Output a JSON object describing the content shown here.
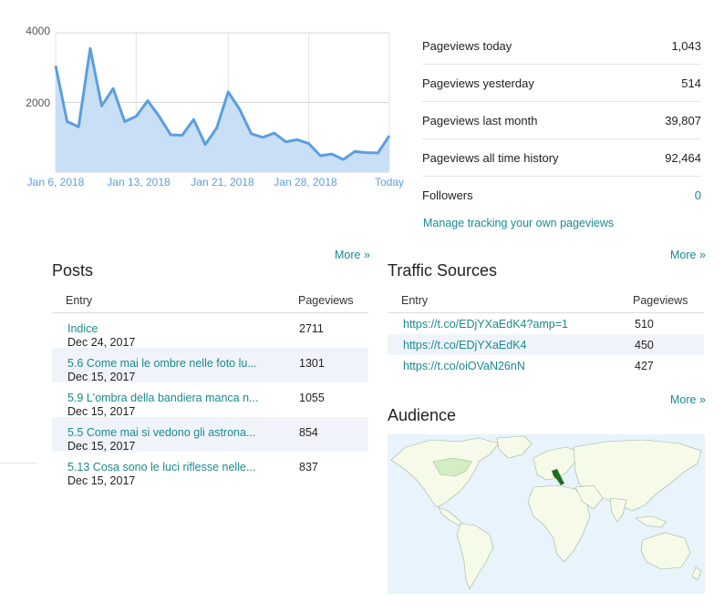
{
  "chart_data": {
    "type": "area",
    "x_labels": [
      "Jan 6, 2018",
      "Jan 13, 2018",
      "Jan 21, 2018",
      "Jan 28, 2018",
      "Today"
    ],
    "yticks": [
      "4000",
      "2000"
    ],
    "ylim": [
      0,
      4000
    ],
    "values": [
      3050,
      1450,
      1300,
      3550,
      1900,
      2400,
      1450,
      1600,
      2050,
      1600,
      1070,
      1060,
      1510,
      790,
      1270,
      2300,
      1800,
      1100,
      1000,
      1120,
      870,
      930,
      820,
      470,
      520,
      360,
      590,
      560,
      550,
      1043
    ],
    "grid": true,
    "colors": {
      "fill": "#c9dff6",
      "line": "#5b9ee0"
    }
  },
  "stats": {
    "items": [
      {
        "label": "Pageviews today",
        "value": "1,043"
      },
      {
        "label": "Pageviews yesterday",
        "value": "514"
      },
      {
        "label": "Pageviews last month",
        "value": "39,807"
      },
      {
        "label": "Pageviews all time history",
        "value": "92,464"
      },
      {
        "label": "Followers",
        "value": "0"
      }
    ],
    "manage_link": "Manage tracking your own pageviews"
  },
  "posts": {
    "more": "More »",
    "title": "Posts",
    "col_entry": "Entry",
    "col_pageviews": "Pageviews",
    "rows": [
      {
        "title": "Indice",
        "date": "Dec 24, 2017",
        "views": "2711"
      },
      {
        "title": "5.6 Come mai le ombre nelle foto lu...",
        "date": "Dec 15, 2017",
        "views": "1301"
      },
      {
        "title": "5.9 L'ombra della bandiera manca n...",
        "date": "Dec 15, 2017",
        "views": "1055"
      },
      {
        "title": "5.5 Come mai si vedono gli astrona...",
        "date": "Dec 15, 2017",
        "views": "854"
      },
      {
        "title": "5.13 Cosa sono le luci riflesse nelle...",
        "date": "Dec 15, 2017",
        "views": "837"
      }
    ]
  },
  "traffic": {
    "more": "More »",
    "title": "Traffic Sources",
    "col_entry": "Entry",
    "col_pageviews": "Pageviews",
    "rows": [
      {
        "source": "https://t.co/EDjYXaEdK4?amp=1",
        "views": "510"
      },
      {
        "source": "https://t.co/EDjYXaEdK4",
        "views": "450"
      },
      {
        "source": "https://t.co/oiOVaN26nN",
        "views": "427"
      }
    ]
  },
  "audience": {
    "more": "More »",
    "title": "Audience",
    "colors": {
      "ocean": "#e8f3fb",
      "land": "#f5fbe8",
      "low": "#d5edc3",
      "high": "#1f6b1f"
    }
  }
}
